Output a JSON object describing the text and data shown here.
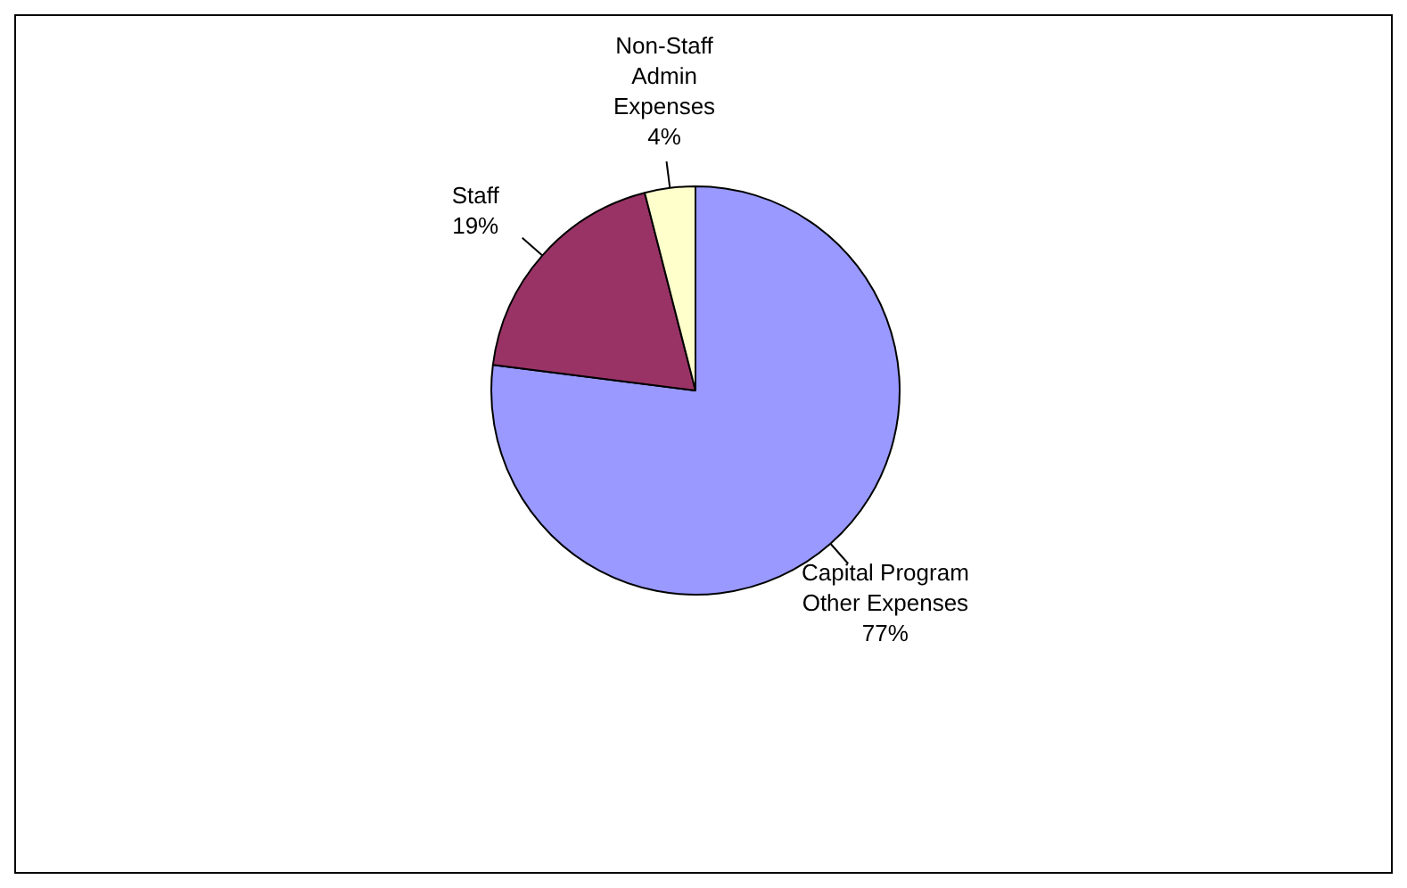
{
  "chart_data": {
    "type": "pie",
    "categories": [
      "Capital Program Other Expenses",
      "Staff",
      "Non-Staff Admin Expenses"
    ],
    "values": [
      77,
      19,
      4
    ],
    "colors": [
      "#9999ff",
      "#993366",
      "#ffffcc"
    ],
    "value_labels": [
      "77%",
      "19%",
      "4%"
    ],
    "legend": false
  }
}
